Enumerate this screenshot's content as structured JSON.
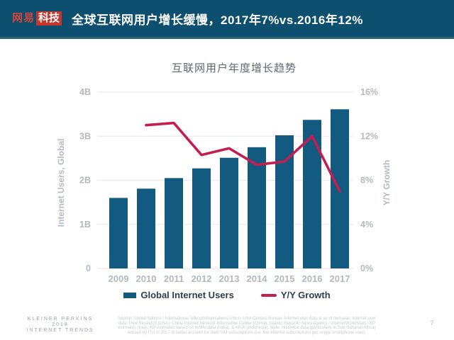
{
  "header": {
    "logo_prefix": "网易",
    "logo_suffix": "科技",
    "title": "全球互联网用户增长缓慢，2017年7%vs.2016年12%"
  },
  "chart_data": {
    "type": "bar",
    "title": "互联网用户年度增长趋势",
    "categories": [
      "2009",
      "2010",
      "2011",
      "2012",
      "2013",
      "2014",
      "2015",
      "2016",
      "2017"
    ],
    "series": [
      {
        "name": "Global Internet Users",
        "type": "bar",
        "axis": "left",
        "unit": "B",
        "values": [
          1.6,
          1.81,
          2.05,
          2.27,
          2.51,
          2.75,
          3.02,
          3.37,
          3.61
        ],
        "color": "#135a80"
      },
      {
        "name": "Y/Y Growth",
        "type": "line",
        "axis": "right",
        "unit": "%",
        "values": [
          null,
          13,
          13.2,
          10.3,
          10.9,
          9.4,
          9.7,
          12,
          7
        ],
        "color": "#c41e51"
      }
    ],
    "left_axis": {
      "label": "Internet Users, Global",
      "ticks": [
        "0",
        "1B",
        "2B",
        "3B",
        "4B"
      ],
      "range": [
        0,
        4
      ]
    },
    "right_axis": {
      "label": "Y/Y Growth",
      "ticks": [
        "0%",
        "4%",
        "8%",
        "12%",
        "16%"
      ],
      "range": [
        0,
        16
      ]
    },
    "grid": true,
    "legend_position": "bottom"
  },
  "footer": {
    "brand_lines": [
      "KLEINER PERKINS",
      "2018",
      "INTERNET TRENDS"
    ],
    "source_lines": [
      "Source: United Nations / International Telecommunications Union, USA Census Bureau. Internet user data is as of mid-year. Internet user",
      "data: Pew Research (USA), China Internet Network Information Center (China), Islamic Republic News Agency / InternetWorldStats / KP",
      "estimates (Iran), KP estimates based on IAMAI data (India), & APJII (Indonesia). Note: Historical data (particularly in Sub-Saharan Africa)",
      "revised by ITU in 2017 to better account for dual-SIM subscriptions (i.e. live Internet subscriptions per single smartphone user)."
    ],
    "page_number": "7"
  },
  "colors": {
    "banner_background": "#0d4f6e",
    "banner_border": "#2e6371",
    "logo_red": "#c6362c",
    "bar": "#135a80",
    "line": "#c41e51",
    "gridline": "#e9ebee",
    "axis_text": "#b3b9be",
    "chart_title_text": "#5d6871",
    "legend_text": "#2f3e4e"
  }
}
